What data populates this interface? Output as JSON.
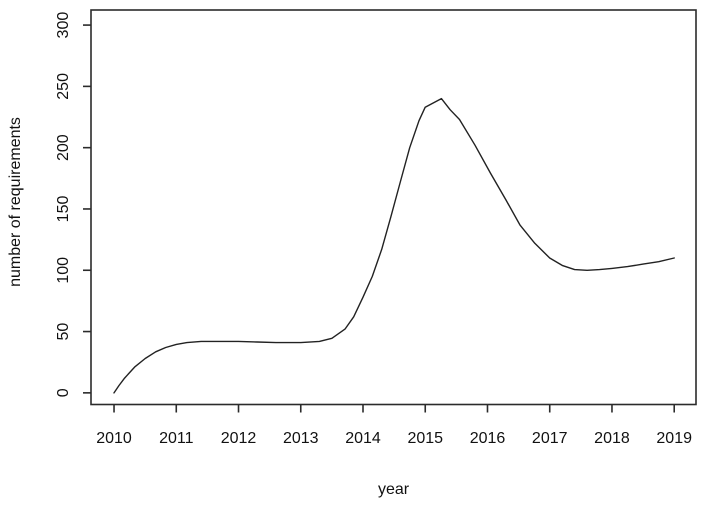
{
  "figure": {
    "background_color": "#ffffff",
    "axis_color": "#2b2b2b",
    "text_color": "#111111"
  },
  "chart_data": {
    "type": "line",
    "title": "",
    "xlabel": "year",
    "ylabel": "number of requirements",
    "x_ticks": [
      2010,
      2011,
      2012,
      2013,
      2014,
      2015,
      2016,
      2017,
      2018,
      2019
    ],
    "y_ticks": [
      0,
      50,
      100,
      150,
      200,
      250,
      300
    ],
    "xlim": [
      2009.63,
      2019.35
    ],
    "ylim": [
      -9.5,
      312.3
    ],
    "grid": false,
    "legend": null,
    "line_color": "#222222",
    "values_at_year_ticks": {
      "2010": 0,
      "2011": 40,
      "2012": 42,
      "2013": 41,
      "2014": 78,
      "2015": 233,
      "2016": 180,
      "2017": 110,
      "2018": 101,
      "2019": 110
    },
    "peak": {
      "x": 2015.3,
      "y": 240
    },
    "series": [
      {
        "name": "number of requirements",
        "x": [
          2010,
          2010.08,
          2010.17,
          2010.33,
          2010.5,
          2010.67,
          2010.83,
          2011,
          2011.17,
          2011.4,
          2012,
          2012.3,
          2012.6,
          2013,
          2013.3,
          2013.5,
          2013.71,
          2013.85,
          2014,
          2014.15,
          2014.3,
          2014.45,
          2014.6,
          2014.75,
          2014.9,
          2015,
          2015.26,
          2015.4,
          2015.55,
          2015.8,
          2016.05,
          2016.3,
          2016.52,
          2016.76,
          2017,
          2017.2,
          2017.4,
          2017.6,
          2017.8,
          2018,
          2018.25,
          2018.5,
          2018.75,
          2019
        ],
        "y": [
          0,
          6,
          12,
          21,
          28,
          33.5,
          37,
          39.5,
          41,
          42,
          42,
          41.5,
          41,
          41,
          42,
          44.5,
          52,
          62,
          78,
          95,
          117,
          144,
          172,
          200,
          222,
          233,
          240,
          231,
          223,
          202,
          179,
          157,
          137,
          122,
          110,
          104,
          100.5,
          100,
          100.5,
          101.5,
          103,
          105,
          107,
          110
        ]
      }
    ]
  }
}
